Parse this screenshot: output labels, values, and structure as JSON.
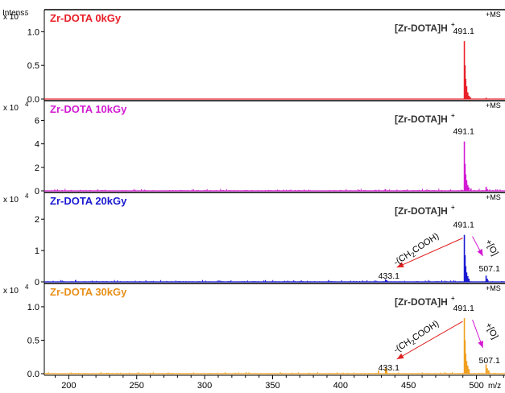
{
  "chart_data": [
    {
      "type": "line",
      "title": "Zr-DOTA 0kGy",
      "title_color": "#e8202a",
      "color": "#e8202a",
      "yaxis_label": "Intens.",
      "scale_label": "x 10",
      "scale_exp": "5",
      "mode_label": "+MS",
      "ion_label": "[Zr-DOTA]H",
      "ion_sup": "+",
      "ylim": [
        0,
        1.28
      ],
      "yticks": [
        0.0,
        0.5,
        1.0
      ],
      "ytick_labels": [
        "0.0",
        "0.5",
        "1.0"
      ],
      "peak_labels": [
        {
          "x": 491.1,
          "text": "491.1"
        }
      ],
      "peaks": [
        {
          "x": 491.1,
          "y": 0.86
        },
        {
          "x": 491.6,
          "y": 0.5
        },
        {
          "x": 492.1,
          "y": 0.3
        },
        {
          "x": 492.8,
          "y": 0.19
        },
        {
          "x": 493.6,
          "y": 0.1
        },
        {
          "x": 494.5,
          "y": 0.05
        },
        {
          "x": 495.5,
          "y": 0.03
        },
        {
          "x": 507.1,
          "y": 0.02
        }
      ],
      "noise_level": 0.0
    },
    {
      "type": "line",
      "title": "Zr-DOTA 10kGy",
      "title_color": "#d21ad2",
      "color": "#d21ad2",
      "scale_label": "x 10",
      "scale_exp": "4",
      "mode_label": "+MS",
      "ion_label": "[Zr-DOTA]H",
      "ion_sup": "+",
      "ylim": [
        0,
        7.4
      ],
      "yticks": [
        0,
        2,
        4,
        6
      ],
      "ytick_labels": [
        "0",
        "2",
        "4",
        "6"
      ],
      "peak_labels": [
        {
          "x": 491.1,
          "text": "491.1"
        }
      ],
      "peaks": [
        {
          "x": 491.1,
          "y": 4.2
        },
        {
          "x": 491.6,
          "y": 2.3
        },
        {
          "x": 492.1,
          "y": 1.4
        },
        {
          "x": 492.8,
          "y": 0.9
        },
        {
          "x": 493.6,
          "y": 0.5
        },
        {
          "x": 494.5,
          "y": 0.3
        },
        {
          "x": 496.0,
          "y": 0.2
        },
        {
          "x": 507.1,
          "y": 0.35
        },
        {
          "x": 508.0,
          "y": 0.15
        },
        {
          "x": 433.1,
          "y": 0.12
        },
        {
          "x": 465.0,
          "y": 0.08
        },
        {
          "x": 300.0,
          "y": 0.05
        }
      ],
      "noise_level": 0.04
    },
    {
      "type": "line",
      "title": "Zr-DOTA 20kGy",
      "title_color": "#1a1ad2",
      "color": "#1a1ad2",
      "scale_label": "x 10",
      "scale_exp": "4",
      "mode_label": "+MS",
      "ion_label": "[Zr-DOTA]H",
      "ion_sup": "+",
      "ylim": [
        0,
        2.75
      ],
      "yticks": [
        0,
        1,
        2
      ],
      "ytick_labels": [
        "0",
        "1",
        "2"
      ],
      "peak_labels": [
        {
          "x": 491.1,
          "text": "491.1"
        },
        {
          "x": 507.1,
          "text": "507.1"
        },
        {
          "x": 433.1,
          "text": "433.1"
        }
      ],
      "loss_label": "-(CH",
      "loss_sub1": "2",
      "loss_mid": "COOH)",
      "ox_label": "+[O]",
      "peaks": [
        {
          "x": 491.1,
          "y": 1.5
        },
        {
          "x": 491.6,
          "y": 0.85
        },
        {
          "x": 492.1,
          "y": 0.5
        },
        {
          "x": 492.8,
          "y": 0.3
        },
        {
          "x": 493.6,
          "y": 0.18
        },
        {
          "x": 494.5,
          "y": 0.1
        },
        {
          "x": 507.1,
          "y": 0.2
        },
        {
          "x": 508.0,
          "y": 0.1
        },
        {
          "x": 433.1,
          "y": 0.08
        },
        {
          "x": 434.0,
          "y": 0.05
        },
        {
          "x": 205.0,
          "y": 0.06
        }
      ],
      "noise_level": 0.035
    },
    {
      "type": "line",
      "title": "Zr-DOTA 30kGy",
      "title_color": "#e8901a",
      "color": "#f0a020",
      "scale_label": "x 10",
      "scale_exp": "4",
      "mode_label": "+MS",
      "ion_label": "[Zr-DOTA]H",
      "ion_sup": "+",
      "ylim": [
        0,
        1.3
      ],
      "yticks": [
        0.0,
        0.5,
        1.0
      ],
      "ytick_labels": [
        "0.0",
        "0.5",
        "1.0"
      ],
      "peak_labels": [
        {
          "x": 491.1,
          "text": "491.1"
        },
        {
          "x": 507.1,
          "text": "507.1"
        },
        {
          "x": 433.1,
          "text": "433.1"
        }
      ],
      "loss_label": "-(CH",
      "loss_sub1": "2",
      "loss_mid": "COOH)",
      "ox_label": "+[O]",
      "peaks": [
        {
          "x": 491.1,
          "y": 0.83
        },
        {
          "x": 491.6,
          "y": 0.5
        },
        {
          "x": 492.1,
          "y": 0.3
        },
        {
          "x": 492.8,
          "y": 0.19
        },
        {
          "x": 493.6,
          "y": 0.12
        },
        {
          "x": 494.5,
          "y": 0.07
        },
        {
          "x": 507.1,
          "y": 0.14
        },
        {
          "x": 508.0,
          "y": 0.08
        },
        {
          "x": 509.0,
          "y": 0.05
        },
        {
          "x": 433.1,
          "y": 0.09
        },
        {
          "x": 434.0,
          "y": 0.06
        },
        {
          "x": 428.0,
          "y": 0.05
        }
      ],
      "noise_level": 0.03
    }
  ],
  "x_axis": {
    "label": "m/z",
    "xlim": [
      182,
      521
    ],
    "ticks": [
      200,
      250,
      300,
      350,
      400,
      450,
      500
    ],
    "tick_labels": [
      "200",
      "250",
      "300",
      "350",
      "400",
      "450",
      "500"
    ]
  }
}
